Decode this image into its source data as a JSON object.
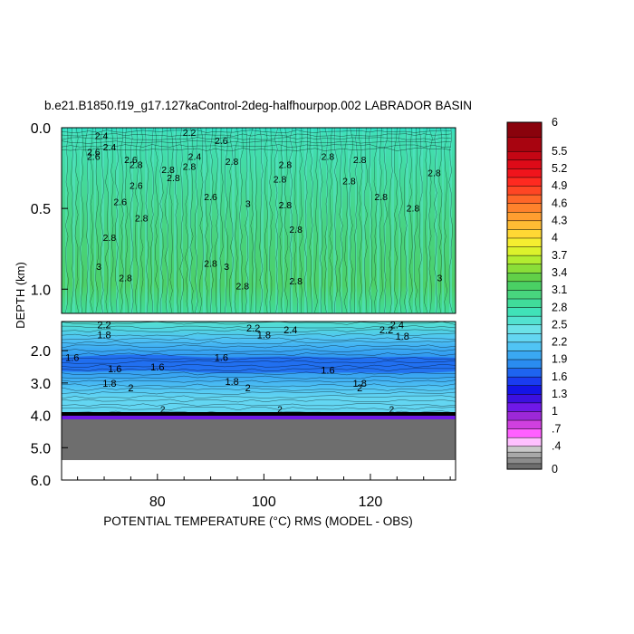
{
  "chart_data": {
    "type": "heatmap",
    "title": "b.e21.B1850.f19_g17.127kaControl-2deg-halfhourpop.002 LABRADOR BASIN",
    "xlabel": "POTENTIAL TEMPERATURE (°C) RMS (MODEL - OBS)",
    "ylabel": "DEPTH (km)",
    "x_range": [
      62,
      136
    ],
    "x_ticks": [
      "80",
      "100",
      "120"
    ],
    "x_tick_values": [
      80,
      100,
      120
    ],
    "upper_panel": {
      "y_range": [
        0.0,
        1.15
      ],
      "y_ticks": [
        "0.0",
        "0.5",
        "1.0"
      ],
      "y_tick_values": [
        0.0,
        0.5,
        1.0
      ]
    },
    "lower_panel": {
      "y_range": [
        1.1,
        6.0
      ],
      "y_ticks": [
        "2.0",
        "3.0",
        "4.0",
        "5.0",
        "6.0"
      ],
      "y_tick_values": [
        2.0,
        3.0,
        4.0,
        5.0,
        6.0
      ],
      "missing_below_depth": 4.0
    },
    "colorbar": {
      "labels": [
        "6",
        "5.5",
        "5.2",
        "4.9",
        "4.6",
        "4.3",
        "4",
        "3.7",
        "3.4",
        "3.1",
        "2.8",
        "2.5",
        "2.2",
        "1.9",
        "1.6",
        "1.3",
        "1",
        ".7",
        ".4",
        "0"
      ],
      "label_values": [
        6,
        5.5,
        5.2,
        4.9,
        4.6,
        4.3,
        4.0,
        3.7,
        3.4,
        3.1,
        2.8,
        2.5,
        2.2,
        1.9,
        1.6,
        1.3,
        1.0,
        0.7,
        0.4,
        0
      ],
      "levels": [
        0,
        0.1,
        0.2,
        0.3,
        0.4,
        0.55,
        0.7,
        0.85,
        1.0,
        1.15,
        1.3,
        1.45,
        1.6,
        1.75,
        1.9,
        2.05,
        2.2,
        2.35,
        2.5,
        2.65,
        2.8,
        2.95,
        3.1,
        3.25,
        3.4,
        3.55,
        3.7,
        3.85,
        4.0,
        4.15,
        4.3,
        4.45,
        4.6,
        4.75,
        4.9,
        5.05,
        5.2,
        5.35,
        5.5,
        5.75,
        6.0
      ],
      "colors": [
        "#6e6e6e",
        "#8c8c8c",
        "#a8a8a8",
        "#c8c8c8",
        "#ffc0ff",
        "#ff60ff",
        "#d040e0",
        "#9c28d8",
        "#7018e8",
        "#3c10e0",
        "#1414e6",
        "#1a3cf0",
        "#1e64f0",
        "#2a8cf0",
        "#3aa8f2",
        "#50c4f4",
        "#63d6f2",
        "#6be2e8",
        "#52e2d0",
        "#40e2b8",
        "#40dc9a",
        "#48d67e",
        "#4ad064",
        "#62d048",
        "#8ade38",
        "#b2ec30",
        "#dcf22c",
        "#f6ee30",
        "#ffd834",
        "#ffbc34",
        "#ff9e30",
        "#ff822c",
        "#ff6628",
        "#ff4624",
        "#ff2a20",
        "#f0141c",
        "#de0a18",
        "#c40614",
        "#a80410",
        "#8a020c"
      ]
    },
    "upper_contour_labels": [
      "2.4",
      "2.2",
      "2.4",
      "2.6",
      "2.6",
      "2.6",
      "2.8",
      "2.8",
      "2.8",
      "2.6",
      "2.6",
      "2.4",
      "2.6",
      "2.8",
      "2.8",
      "2.8",
      "2.8",
      "2.8",
      "2.6",
      "2.8",
      "2.8",
      "2.8",
      "3",
      "3",
      "3",
      "2.8",
      "2.8",
      "2.8",
      "2.8",
      "2.8",
      "2.8",
      "2.8",
      "2.8",
      "3",
      "2.8",
      "2.8"
    ],
    "lower_contour_labels": [
      "2.2",
      "1.8",
      "2.2",
      "1.8",
      "2.4",
      "2.4",
      "2.2",
      "1.8",
      "1.6",
      "1.6",
      "1.6",
      "1.6",
      "1.6",
      "1.8",
      "2",
      "1.8",
      "2",
      "1.8",
      "2"
    ],
    "bottom_labels": [
      "2",
      "2",
      "2"
    ]
  }
}
